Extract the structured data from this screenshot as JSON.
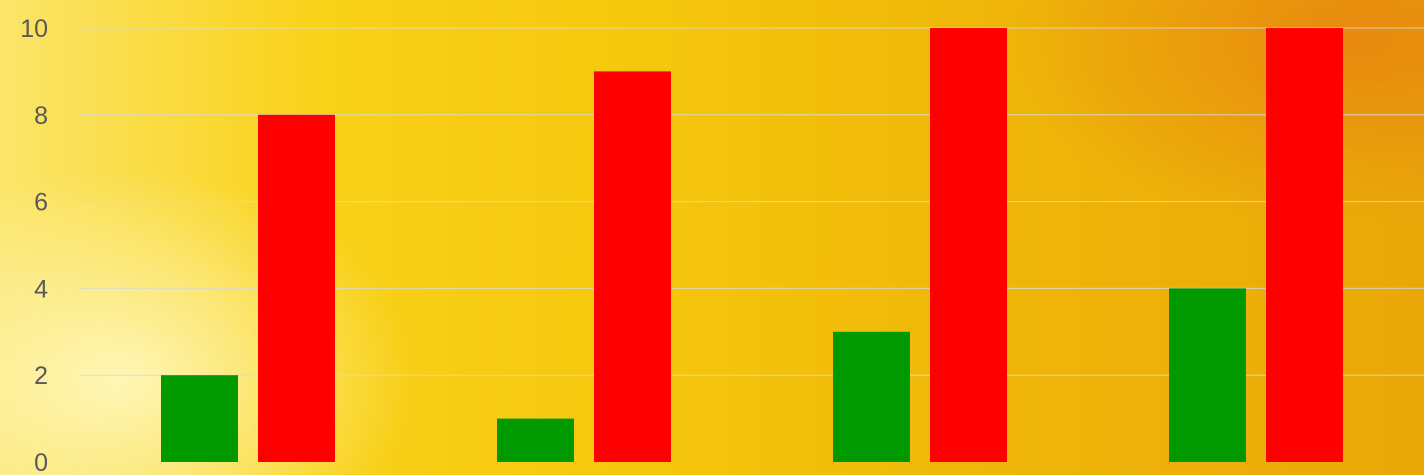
{
  "chart_data": {
    "type": "bar",
    "title": "",
    "xlabel": "",
    "ylabel": "",
    "ylim": [
      0,
      10
    ],
    "yticks": [
      0,
      2,
      4,
      6,
      8,
      10
    ],
    "grid": true,
    "categories": [
      "",
      "",
      "",
      ""
    ],
    "series": [
      {
        "color": "#009900",
        "values": [
          2,
          1,
          3,
          4
        ]
      },
      {
        "color": "#ff0000",
        "values": [
          8,
          9,
          10,
          10
        ]
      }
    ]
  }
}
